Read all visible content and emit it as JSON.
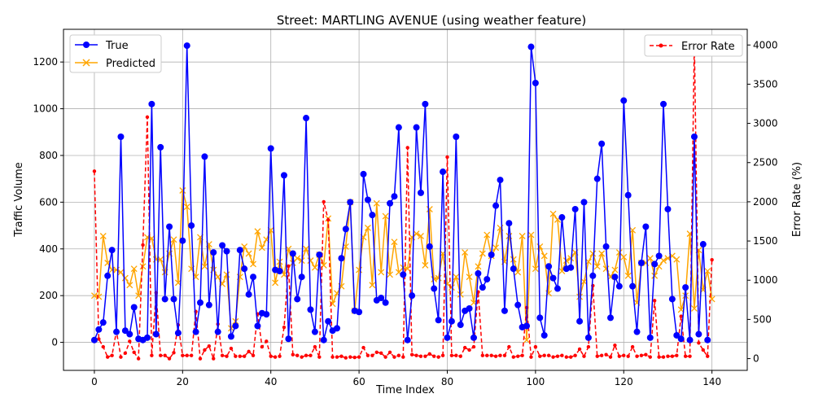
{
  "chart_data": {
    "type": "line",
    "title": "Street: MARTLING AVENUE (using weather feature)",
    "xlabel": "Time Index",
    "ylabel": "Traffic Volume",
    "y2label": "Error Rate (%)",
    "xlim": [
      -7,
      148
    ],
    "ylim": [
      -120,
      1340
    ],
    "y2lim": [
      -150,
      4200
    ],
    "xticks": [
      0,
      20,
      40,
      60,
      80,
      100,
      120,
      140
    ],
    "yticks": [
      0,
      200,
      400,
      600,
      800,
      1000,
      1200
    ],
    "y2ticks": [
      0,
      500,
      1000,
      1500,
      2000,
      2500,
      3000,
      3500,
      4000
    ],
    "grid": true,
    "legend_left_position": "upper-left",
    "legend_right_position": "upper-right",
    "series": [
      {
        "name": "True",
        "axis": "left",
        "color": "#0000ff",
        "marker": "circle",
        "values": [
          10,
          55,
          85,
          285,
          395,
          45,
          880,
          50,
          35,
          150,
          15,
          10,
          20,
          1020,
          35,
          835,
          185,
          495,
          185,
          40,
          435,
          1270,
          500,
          45,
          170,
          795,
          160,
          385,
          45,
          415,
          390,
          25,
          70,
          395,
          315,
          205,
          280,
          70,
          125,
          120,
          830,
          310,
          305,
          715,
          15,
          380,
          185,
          280,
          960,
          140,
          45,
          375,
          10,
          90,
          50,
          60,
          360,
          485,
          600,
          135,
          130,
          720,
          610,
          545,
          180,
          190,
          170,
          595,
          625,
          920,
          290,
          10,
          200,
          920,
          640,
          1020,
          410,
          230,
          95,
          730,
          20,
          90,
          880,
          75,
          135,
          145,
          20,
          295,
          235,
          270,
          375,
          585,
          695,
          135,
          510,
          315,
          160,
          65,
          70,
          1265,
          1110,
          105,
          30,
          325,
          275,
          230,
          535,
          315,
          320,
          570,
          90,
          600,
          20,
          285,
          700,
          850,
          410,
          105,
          280,
          240,
          1035,
          630,
          240,
          45,
          340,
          495,
          20,
          335,
          370,
          1020,
          570,
          185,
          30,
          15,
          235,
          10,
          880,
          35,
          420,
          10
        ]
      },
      {
        "name": "Predicted",
        "axis": "left",
        "color": "#ffa500",
        "marker": "x",
        "values": [
          200,
          195,
          455,
          340,
          310,
          310,
          300,
          275,
          245,
          315,
          200,
          325,
          450,
          445,
          355,
          355,
          300,
          380,
          440,
          255,
          650,
          580,
          315,
          280,
          450,
          325,
          420,
          310,
          280,
          250,
          290,
          60,
          90,
          280,
          410,
          380,
          335,
          475,
          405,
          440,
          480,
          255,
          345,
          290,
          400,
          340,
          360,
          350,
          400,
          350,
          320,
          375,
          330,
          530,
          165,
          210,
          240,
          410,
          600,
          135,
          310,
          450,
          490,
          245,
          595,
          300,
          540,
          290,
          430,
          300,
          320,
          315,
          450,
          465,
          455,
          330,
          570,
          270,
          275,
          380,
          250,
          235,
          280,
          205,
          385,
          280,
          170,
          325,
          380,
          460,
          370,
          405,
          490,
          345,
          455,
          355,
          300,
          455,
          10,
          460,
          315,
          410,
          370,
          210,
          550,
          525,
          305,
          350,
          360,
          385,
          195,
          260,
          345,
          380,
          325,
          380,
          315,
          280,
          310,
          385,
          365,
          285,
          480,
          170,
          340,
          340,
          360,
          285,
          325,
          350,
          360,
          370,
          355,
          140,
          200,
          465,
          145,
          395,
          225,
          305,
          185
        ]
      },
      {
        "name": "Error Rate",
        "axis": "right",
        "color": "#ff0000",
        "marker": "dot",
        "dashed": true,
        "values": [
          2390,
          250,
          150,
          20,
          40,
          350,
          20,
          70,
          220,
          80,
          0,
          1450,
          3080,
          40,
          840,
          40,
          40,
          0,
          75,
          430,
          40,
          40,
          40,
          600,
          0,
          110,
          160,
          0,
          440,
          40,
          30,
          130,
          30,
          30,
          30,
          90,
          40,
          570,
          150,
          220,
          30,
          20,
          30,
          400,
          1180,
          50,
          40,
          20,
          40,
          40,
          150,
          20,
          2000,
          1770,
          20,
          20,
          30,
          10,
          20,
          15,
          20,
          140,
          40,
          40,
          80,
          70,
          20,
          80,
          20,
          40,
          20,
          2690,
          50,
          40,
          30,
          30,
          60,
          30,
          20,
          40,
          2570,
          40,
          40,
          30,
          140,
          110,
          150,
          850,
          40,
          40,
          40,
          30,
          40,
          40,
          150,
          20,
          30,
          40,
          650,
          20,
          150,
          30,
          40,
          40,
          20,
          30,
          40,
          20,
          20,
          40,
          120,
          30,
          150,
          930,
          30,
          40,
          50,
          20,
          170,
          30,
          40,
          30,
          150,
          30,
          40,
          50,
          20,
          740,
          20,
          20,
          30,
          30,
          40,
          540,
          30,
          30,
          4060,
          200,
          110,
          30,
          1260
        ]
      }
    ]
  }
}
